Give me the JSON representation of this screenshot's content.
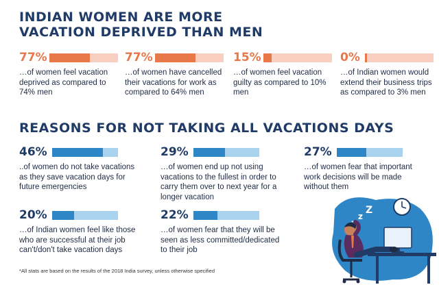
{
  "heading1_line1": "INDIAN WOMEN ARE MORE",
  "heading1_line2": "VACATION DEPRIVED THAN MEN",
  "heading2": "REASONS FOR NOT TAKING ALL VACATIONS DAYS",
  "footnote": "*All stats are based on the results of the 2018 India survey, unless otherwise specified",
  "colors": {
    "orange": "#e8774a",
    "orange_light": "#f8cfc0",
    "blue": "#2f86c6",
    "blue_light": "#a9d2ef",
    "navy": "#1f3b66"
  },
  "chart_data": [
    {
      "type": "bar",
      "title": "INDIAN WOMEN ARE MORE VACATION DEPRIVED THAN MEN",
      "items": [
        {
          "label": "77%",
          "value": 77,
          "desc": [
            "…of women feel vacation",
            "deprived as compared to",
            "74% men"
          ]
        },
        {
          "label": "77%",
          "value": 77,
          "desc": [
            "…of women have cancelled",
            "their vacations for work as",
            "compared to 64% men"
          ]
        },
        {
          "label": "15%",
          "value": 15,
          "desc": [
            "…of women feel vacation",
            "guilty as compared to 10%",
            "men"
          ]
        },
        {
          "label": "0%",
          "value": 0,
          "desc": [
            "…of Indian women would",
            "extend their business trips",
            "as compared to 3% men"
          ]
        }
      ]
    },
    {
      "type": "bar",
      "title": "REASONS FOR NOT TAKING ALL VACATIONS DAYS",
      "items": [
        {
          "label": "46%",
          "value": 46,
          "desc": [
            "..of women do not take vacations",
            "as they save vacation days for",
            "future emergencies"
          ]
        },
        {
          "label": "29%",
          "value": 29,
          "desc": [
            "…of women end up not using",
            "vacations to the fullest in order to",
            "carry them over to next year for a",
            "longer vacation"
          ]
        },
        {
          "label": "27%",
          "value": 27,
          "desc": [
            "…of women fear that important",
            "work decisions will be made",
            "without them"
          ]
        },
        {
          "label": "20%",
          "value": 20,
          "desc": [
            "…of Indian women feel like those",
            "who are successful at their job",
            "can't/don't take vacation days"
          ]
        },
        {
          "label": "22%",
          "value": 22,
          "desc": [
            "…of women fear that they will be",
            "seen as less committed/dedicated",
            "to their job"
          ]
        }
      ]
    }
  ]
}
